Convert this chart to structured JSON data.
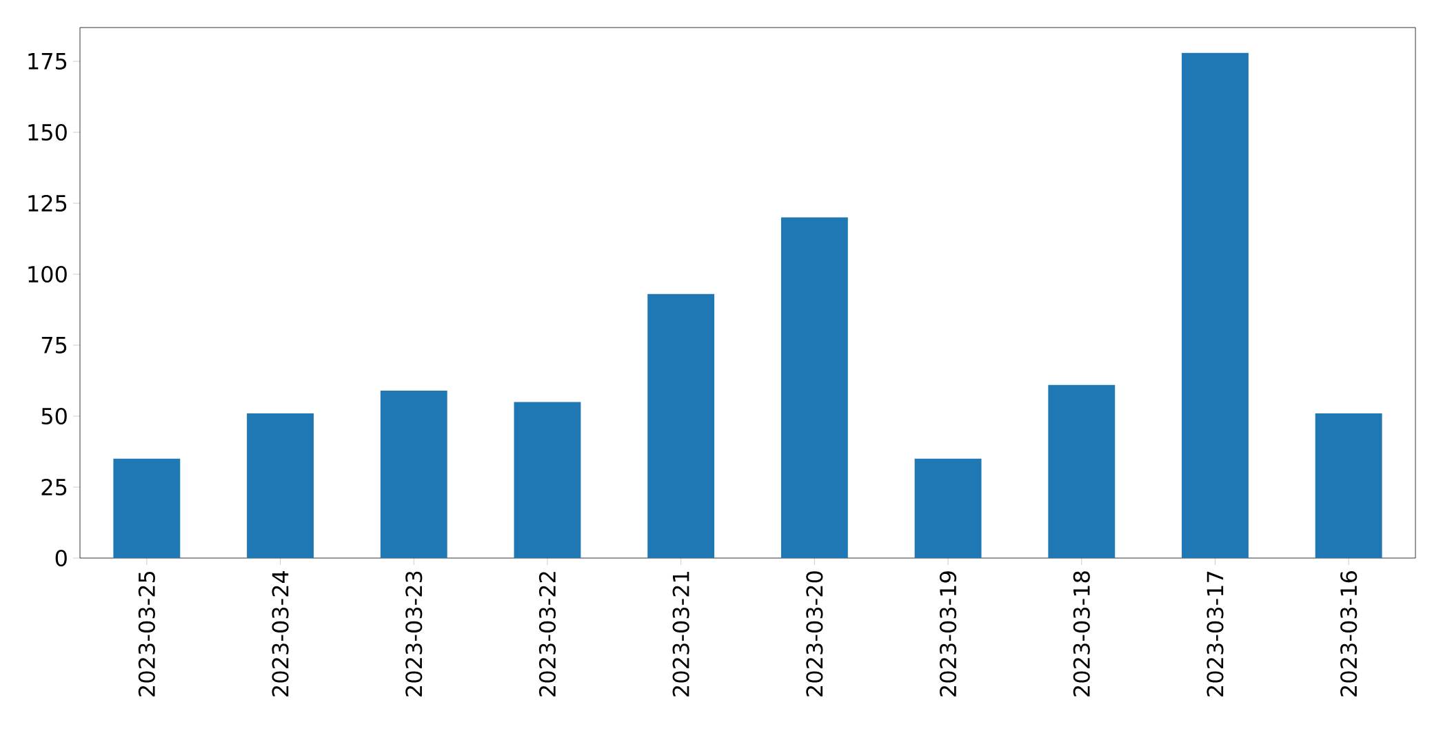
{
  "chart_data": {
    "type": "bar",
    "categories": [
      "2023-03-25",
      "2023-03-24",
      "2023-03-23",
      "2023-03-22",
      "2023-03-21",
      "2023-03-20",
      "2023-03-19",
      "2023-03-18",
      "2023-03-17",
      "2023-03-16"
    ],
    "values": [
      35,
      51,
      59,
      55,
      93,
      120,
      35,
      61,
      178,
      51
    ],
    "color": "#1f77b4",
    "ylim": [
      0,
      186.9
    ],
    "yticks": [
      0,
      25,
      50,
      75,
      100,
      125,
      150,
      175
    ],
    "grid": false
  }
}
